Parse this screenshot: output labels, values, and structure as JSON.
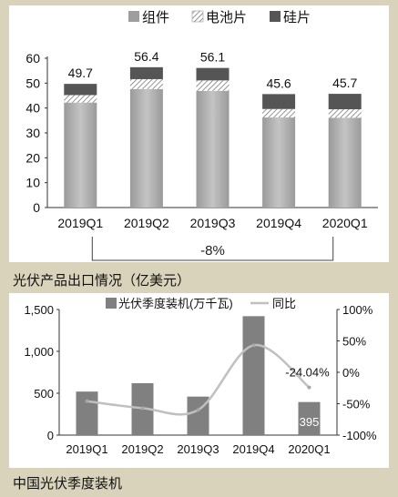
{
  "captions": {
    "chart1": "光伏产品出口情况（亿美元）",
    "chart2": "中国光伏季度装机"
  },
  "chart_data": [
    {
      "type": "bar",
      "stacked": true,
      "categories": [
        "2019Q1",
        "2019Q2",
        "2019Q3",
        "2019Q4",
        "2020Q1"
      ],
      "series": [
        {
          "name": "组件",
          "color": "#a6a6a6",
          "pattern": "solid-gradient",
          "values": [
            42.2,
            47.6,
            46.9,
            36.2,
            36.1
          ]
        },
        {
          "name": "电池片",
          "color": "#ffffff",
          "pattern": "hatch",
          "values": [
            3.0,
            4.0,
            4.2,
            3.4,
            3.4
          ]
        },
        {
          "name": "硅片",
          "color": "#555555",
          "pattern": "solid",
          "values": [
            4.5,
            4.8,
            5.0,
            6.0,
            6.2
          ]
        }
      ],
      "totals": [
        "49.7",
        "56.4",
        "56.1",
        "45.6",
        "45.7"
      ],
      "ylim": [
        0,
        60
      ],
      "yticks": [
        "0",
        "10",
        "20",
        "30",
        "40",
        "50",
        "60"
      ],
      "legend_position": "top",
      "annotation": "-8%"
    },
    {
      "type": "bar",
      "categories": [
        "2019Q1",
        "2019Q2",
        "2019Q3",
        "2019Q4",
        "2020Q1"
      ],
      "series": [
        {
          "name": "光伏季度装机(万千瓦)",
          "type": "bar",
          "axis": "left",
          "color": "#808080",
          "values": [
            520,
            620,
            460,
            1420,
            395
          ]
        },
        {
          "name": "同比",
          "type": "line",
          "axis": "right",
          "color": "#c0c0c0",
          "values": [
            -46,
            -57,
            -60,
            43,
            -24.04
          ]
        }
      ],
      "ylim_left": [
        0,
        1500
      ],
      "yticks_left": [
        "0",
        "500",
        "1,000",
        "1,500"
      ],
      "ylim_right": [
        -100,
        100
      ],
      "yticks_right": [
        "-100%",
        "-50%",
        "0%",
        "50%",
        "100%"
      ],
      "legend_position": "top",
      "labels": {
        "bar_last": "395",
        "line_last": "-24.04%"
      }
    }
  ]
}
